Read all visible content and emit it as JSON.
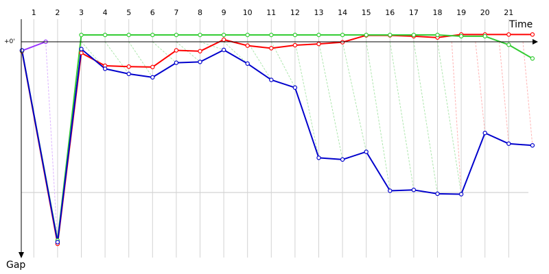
{
  "chart_data": {
    "type": "line",
    "xlabel": "Time",
    "ylabel": "Gap",
    "zero_label": "+0'",
    "laps": [
      "1",
      "2",
      "3",
      "4",
      "5",
      "6",
      "7",
      "8",
      "9",
      "10",
      "11",
      "12",
      "13",
      "14",
      "15",
      "16",
      "17",
      "18",
      "19",
      "20",
      "21"
    ],
    "grid": true,
    "series": [
      {
        "color": "#9933ff",
        "points": [
          [
            0.0,
            10.5
          ],
          [
            1.0,
            0.0
          ]
        ]
      },
      {
        "color": "#ff0000",
        "points": [
          [
            0.0,
            11.0
          ],
          [
            1.5,
            236.0
          ],
          [
            2.5,
            13.0
          ],
          [
            3.5,
            28.0
          ],
          [
            4.5,
            29.0
          ],
          [
            5.5,
            29.5
          ],
          [
            6.5,
            10.0
          ],
          [
            7.5,
            11.0
          ],
          [
            8.5,
            -2.5
          ],
          [
            9.5,
            4.5
          ],
          [
            10.5,
            7.5
          ],
          [
            11.5,
            4.0
          ],
          [
            12.5,
            2.5
          ],
          [
            13.5,
            0.5
          ],
          [
            14.5,
            -7.5
          ],
          [
            15.5,
            -7.5
          ],
          [
            16.5,
            -6.5
          ],
          [
            17.5,
            -5.0
          ],
          [
            18.5,
            -8.5
          ],
          [
            19.5,
            -8.5
          ],
          [
            20.5,
            -8.5
          ],
          [
            21.5,
            -8.5
          ]
        ]
      },
      {
        "color": "#33cc33",
        "points": [
          [
            0.0,
            10.5
          ],
          [
            1.5,
            232.0
          ],
          [
            2.5,
            -8.0
          ],
          [
            3.5,
            -8.0
          ],
          [
            4.5,
            -8.0
          ],
          [
            5.5,
            -8.0
          ],
          [
            6.5,
            -8.0
          ],
          [
            7.5,
            -8.0
          ],
          [
            8.5,
            -8.0
          ],
          [
            9.5,
            -8.0
          ],
          [
            10.5,
            -8.0
          ],
          [
            11.5,
            -8.0
          ],
          [
            12.5,
            -8.0
          ],
          [
            13.5,
            -8.0
          ],
          [
            14.5,
            -8.0
          ],
          [
            15.5,
            -8.0
          ],
          [
            16.5,
            -8.0
          ],
          [
            17.5,
            -8.0
          ],
          [
            18.5,
            -6.5
          ],
          [
            19.5,
            -6.5
          ],
          [
            20.5,
            3.5
          ],
          [
            21.5,
            19.5
          ]
        ]
      },
      {
        "color": "#0000cc",
        "points": [
          [
            0.0,
            10.0
          ],
          [
            1.5,
            234.0
          ],
          [
            2.5,
            8.5
          ],
          [
            3.5,
            31.5
          ],
          [
            4.5,
            37.5
          ],
          [
            5.5,
            41.5
          ],
          [
            6.5,
            24.5
          ],
          [
            7.5,
            23.5
          ],
          [
            8.5,
            9.5
          ],
          [
            9.5,
            25.5
          ],
          [
            10.5,
            44.5
          ],
          [
            11.5,
            53.5
          ],
          [
            12.5,
            135.5
          ],
          [
            13.5,
            137.5
          ],
          [
            14.5,
            128.5
          ],
          [
            15.5,
            174.0
          ],
          [
            16.5,
            173.0
          ],
          [
            17.5,
            177.5
          ],
          [
            18.5,
            178.0
          ],
          [
            19.5,
            106.5
          ],
          [
            20.5,
            119.0
          ],
          [
            21.5,
            121.0
          ]
        ]
      }
    ]
  }
}
